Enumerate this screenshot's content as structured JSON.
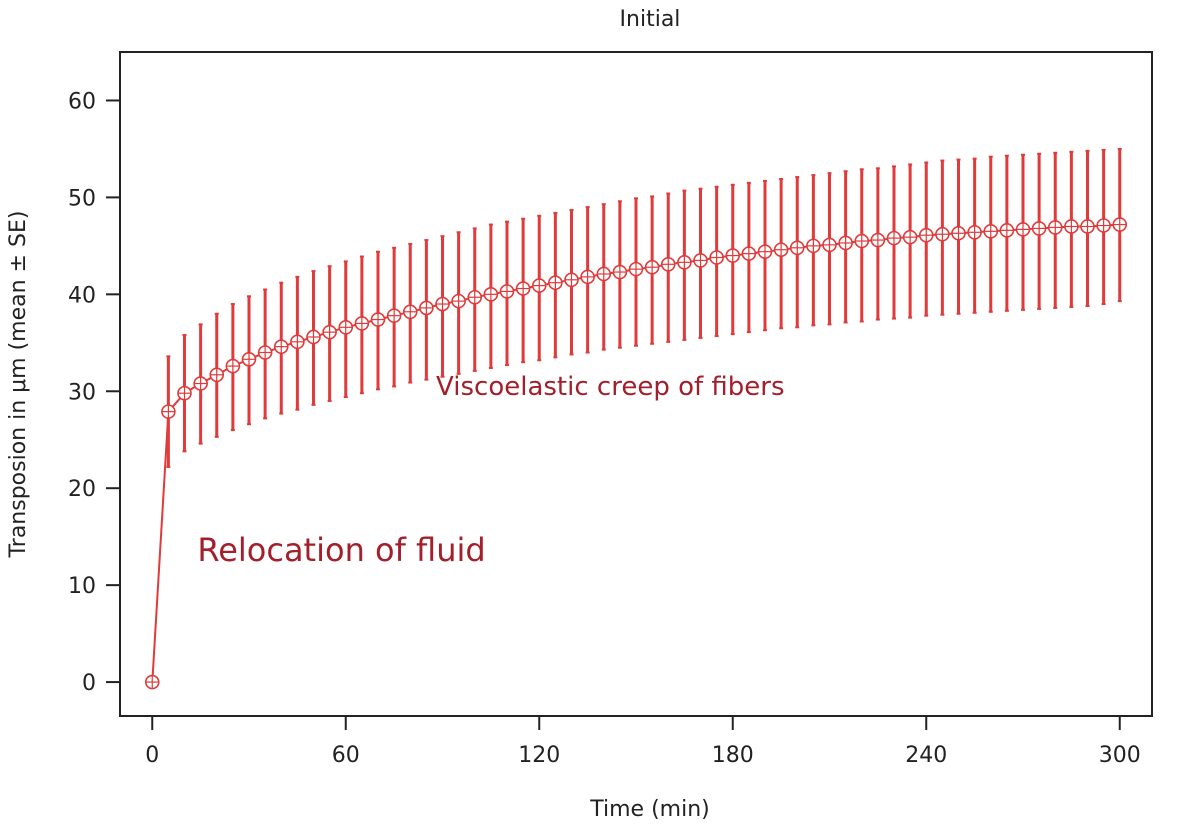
{
  "chart_data": {
    "type": "line",
    "title": "Initial",
    "xlabel": "Time (min)",
    "ylabel": "Transposion in μm (mean ± SE)",
    "xlim": [
      -10,
      310
    ],
    "ylim": [
      -3.5,
      65
    ],
    "x_ticks": [
      0,
      60,
      120,
      180,
      240,
      300
    ],
    "y_ticks": [
      0,
      10,
      20,
      30,
      40,
      50,
      60
    ],
    "grid": false,
    "series_color": "#e03a3a",
    "annotation_color": "#a31f2b",
    "annotations": [
      {
        "text": "Viscoelastic creep of fibers",
        "x": 88,
        "y": 29.6,
        "size": "medium"
      },
      {
        "text": "Relocation of fluid",
        "x": 14,
        "y": 12.5,
        "size": "large"
      }
    ],
    "series": [
      {
        "x": [
          0,
          5,
          10,
          15,
          20,
          25,
          30,
          35,
          40,
          45,
          50,
          55,
          60,
          65,
          70,
          75,
          80,
          85,
          90,
          95,
          100,
          105,
          110,
          115,
          120,
          125,
          130,
          135,
          140,
          145,
          150,
          155,
          160,
          165,
          170,
          175,
          180,
          185,
          190,
          195,
          200,
          205,
          210,
          215,
          220,
          225,
          230,
          235,
          240,
          245,
          250,
          255,
          260,
          265,
          270,
          275,
          280,
          285,
          290,
          295,
          300
        ],
        "y": [
          0,
          27.9,
          29.8,
          30.8,
          31.7,
          32.6,
          33.3,
          34.0,
          34.6,
          35.1,
          35.6,
          36.1,
          36.6,
          37.0,
          37.4,
          37.8,
          38.2,
          38.6,
          39.0,
          39.3,
          39.7,
          40.0,
          40.3,
          40.6,
          40.9,
          41.2,
          41.5,
          41.8,
          42.1,
          42.3,
          42.6,
          42.8,
          43.1,
          43.3,
          43.5,
          43.8,
          44.0,
          44.2,
          44.4,
          44.6,
          44.8,
          45.0,
          45.1,
          45.3,
          45.5,
          45.6,
          45.8,
          45.9,
          46.1,
          46.2,
          46.3,
          46.4,
          46.5,
          46.6,
          46.7,
          46.8,
          46.9,
          47.0,
          47.0,
          47.1,
          47.2
        ],
        "err_low": [
          0,
          22.2,
          23.8,
          24.6,
          25.3,
          26.0,
          26.6,
          27.2,
          27.7,
          28.1,
          28.6,
          29.0,
          29.4,
          29.8,
          30.2,
          30.5,
          30.9,
          31.2,
          31.5,
          31.8,
          32.1,
          32.4,
          32.7,
          33.0,
          33.2,
          33.5,
          33.8,
          34.0,
          34.3,
          34.5,
          34.7,
          34.9,
          35.1,
          35.3,
          35.5,
          35.7,
          35.9,
          36.1,
          36.3,
          36.5,
          36.6,
          36.8,
          36.9,
          37.1,
          37.2,
          37.4,
          37.5,
          37.6,
          37.8,
          37.9,
          38.0,
          38.1,
          38.2,
          38.3,
          38.4,
          38.5,
          38.6,
          38.7,
          38.8,
          39.0,
          39.3
        ],
        "err_high": [
          0,
          33.6,
          35.8,
          36.9,
          38.0,
          39.0,
          39.8,
          40.5,
          41.2,
          41.8,
          42.4,
          42.9,
          43.4,
          43.9,
          44.4,
          44.8,
          45.2,
          45.6,
          46.0,
          46.4,
          46.8,
          47.2,
          47.5,
          47.8,
          48.1,
          48.4,
          48.7,
          49.0,
          49.3,
          49.6,
          49.9,
          50.1,
          50.4,
          50.7,
          50.9,
          51.1,
          51.3,
          51.5,
          51.7,
          51.9,
          52.1,
          52.3,
          52.5,
          52.7,
          52.9,
          53.0,
          53.2,
          53.4,
          53.6,
          53.8,
          53.9,
          54.0,
          54.2,
          54.3,
          54.4,
          54.5,
          54.6,
          54.7,
          54.8,
          54.9,
          55.0
        ]
      }
    ]
  }
}
